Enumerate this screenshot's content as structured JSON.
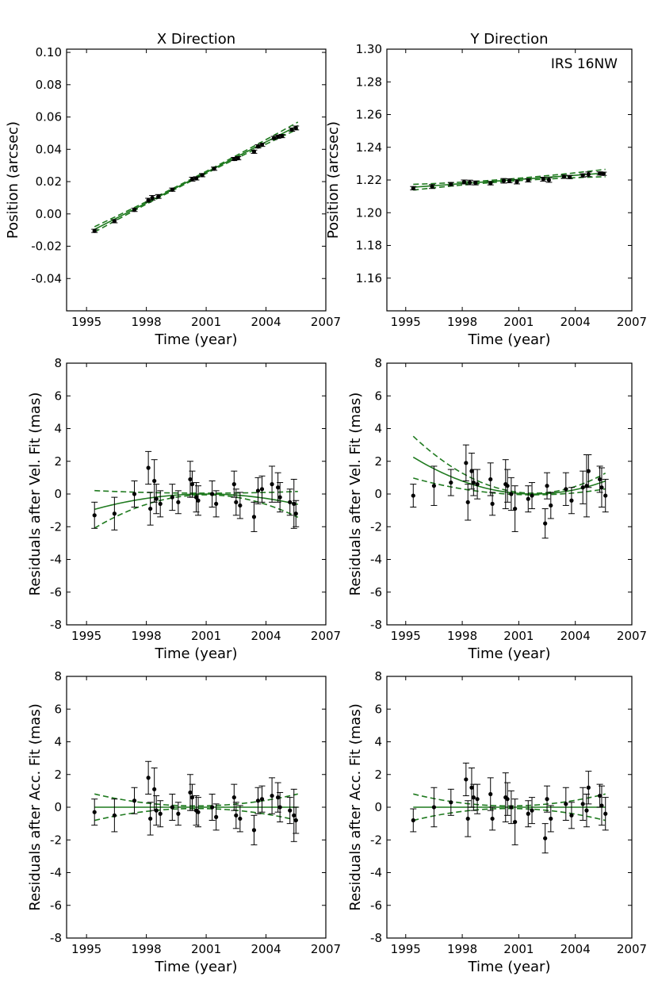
{
  "figure": {
    "annotation": "IRS 16NW"
  },
  "colors": {
    "fit": "#1f7a1f",
    "points": "#000000",
    "frame": "#000000"
  },
  "chart_data": [
    {
      "type": "scatter",
      "title": "X Direction",
      "xlabel": "Time (year)",
      "ylabel": "Position (arcsec)",
      "xlim": [
        1994.0,
        2007.0
      ],
      "ylim": [
        -0.06,
        0.102
      ],
      "xticks": [
        1995,
        1998,
        2001,
        2004,
        2007
      ],
      "yticks": [
        -0.04,
        -0.02,
        0.0,
        0.02,
        0.04,
        0.06,
        0.08,
        0.1
      ],
      "ytick_labels": [
        "-0.04",
        "-0.02",
        "0.00",
        "0.02",
        "0.04",
        "0.06",
        "0.08",
        "0.10"
      ],
      "points": [
        {
          "x": 1995.4,
          "y": -0.0105,
          "err": 0.001
        },
        {
          "x": 1996.4,
          "y": -0.0045,
          "err": 0.001
        },
        {
          "x": 1997.4,
          "y": 0.0025,
          "err": 0.001
        },
        {
          "x": 1998.1,
          "y": 0.0085,
          "err": 0.0012
        },
        {
          "x": 1998.3,
          "y": 0.01,
          "err": 0.0014
        },
        {
          "x": 1998.6,
          "y": 0.0108,
          "err": 0.0012
        },
        {
          "x": 1999.3,
          "y": 0.015,
          "err": 0.001
        },
        {
          "x": 2000.3,
          "y": 0.0215,
          "err": 0.0012
        },
        {
          "x": 2000.5,
          "y": 0.022,
          "err": 0.001
        },
        {
          "x": 2000.8,
          "y": 0.024,
          "err": 0.001
        },
        {
          "x": 2001.4,
          "y": 0.028,
          "err": 0.001
        },
        {
          "x": 2002.4,
          "y": 0.034,
          "err": 0.001
        },
        {
          "x": 2002.6,
          "y": 0.0345,
          "err": 0.001
        },
        {
          "x": 2003.4,
          "y": 0.0385,
          "err": 0.001
        },
        {
          "x": 2003.6,
          "y": 0.0418,
          "err": 0.001
        },
        {
          "x": 2003.8,
          "y": 0.0428,
          "err": 0.001
        },
        {
          "x": 2004.4,
          "y": 0.047,
          "err": 0.001
        },
        {
          "x": 2004.6,
          "y": 0.0478,
          "err": 0.001
        },
        {
          "x": 2004.8,
          "y": 0.0482,
          "err": 0.001
        },
        {
          "x": 2005.3,
          "y": 0.0522,
          "err": 0.001
        },
        {
          "x": 2005.5,
          "y": 0.0532,
          "err": 0.0012
        }
      ],
      "fit": {
        "x0": 2000.0,
        "c0": 0.0194,
        "c1": 0.0063,
        "c2": 0.0,
        "band": {
          "b0": 0.0006,
          "b2": 5e-05
        }
      }
    },
    {
      "type": "scatter",
      "title": "Y Direction",
      "xlabel": "Time (year)",
      "ylabel": "Position (arcsec)",
      "xlim": [
        1994.0,
        2007.0
      ],
      "ylim": [
        1.14,
        1.3
      ],
      "xticks": [
        1995,
        1998,
        2001,
        2004,
        2007
      ],
      "yticks": [
        1.16,
        1.18,
        1.2,
        1.22,
        1.24,
        1.26,
        1.28,
        1.3
      ],
      "ytick_labels": [
        "1.16",
        "1.18",
        "1.20",
        "1.22",
        "1.24",
        "1.26",
        "1.28",
        "1.30"
      ],
      "points": [
        {
          "x": 1995.4,
          "y": 1.215,
          "err": 0.001
        },
        {
          "x": 1996.4,
          "y": 1.216,
          "err": 0.0012
        },
        {
          "x": 1997.4,
          "y": 1.2175,
          "err": 0.001
        },
        {
          "x": 1998.1,
          "y": 1.2188,
          "err": 0.0012
        },
        {
          "x": 1998.4,
          "y": 1.2185,
          "err": 0.0014
        },
        {
          "x": 1998.7,
          "y": 1.2182,
          "err": 0.0012
        },
        {
          "x": 1999.5,
          "y": 1.218,
          "err": 0.001
        },
        {
          "x": 2000.2,
          "y": 1.2195,
          "err": 0.0014
        },
        {
          "x": 2000.5,
          "y": 1.2195,
          "err": 0.0012
        },
        {
          "x": 2000.9,
          "y": 1.2188,
          "err": 0.0012
        },
        {
          "x": 2001.5,
          "y": 1.2198,
          "err": 0.001
        },
        {
          "x": 2002.3,
          "y": 1.2205,
          "err": 0.0012
        },
        {
          "x": 2002.6,
          "y": 1.22,
          "err": 0.0014
        },
        {
          "x": 2003.4,
          "y": 1.222,
          "err": 0.001
        },
        {
          "x": 2003.7,
          "y": 1.2218,
          "err": 0.001
        },
        {
          "x": 2004.4,
          "y": 1.2228,
          "err": 0.001
        },
        {
          "x": 2004.7,
          "y": 1.2235,
          "err": 0.0014
        },
        {
          "x": 2005.3,
          "y": 1.224,
          "err": 0.001
        },
        {
          "x": 2005.5,
          "y": 1.2238,
          "err": 0.001
        }
      ],
      "fit": {
        "x0": 2000.0,
        "c0": 1.2195,
        "c1": 0.00085,
        "c2": 0.0,
        "band": {
          "b0": 0.0007,
          "b2": 5e-05
        }
      }
    },
    {
      "type": "scatter",
      "title": "",
      "xlabel": "Time (year)",
      "ylabel": "Residuals after Vel. Fit (mas)",
      "xlim": [
        1994.0,
        2007.0
      ],
      "ylim": [
        -8,
        8
      ],
      "xticks": [
        1995,
        1998,
        2001,
        2004,
        2007
      ],
      "yticks": [
        -8,
        -6,
        -4,
        -2,
        0,
        2,
        4,
        6,
        8
      ],
      "ytick_labels": [
        "-8",
        "-6",
        "-4",
        "-2",
        "0",
        "2",
        "4",
        "6",
        "8"
      ],
      "points": [
        {
          "x": 1995.4,
          "y": -1.3,
          "err": 0.8
        },
        {
          "x": 1996.4,
          "y": -1.2,
          "err": 1.0
        },
        {
          "x": 1997.4,
          "y": 0.0,
          "err": 0.8
        },
        {
          "x": 1998.1,
          "y": 1.6,
          "err": 1.0
        },
        {
          "x": 1998.2,
          "y": -0.9,
          "err": 1.0
        },
        {
          "x": 1998.4,
          "y": 0.8,
          "err": 1.3
        },
        {
          "x": 1998.5,
          "y": -0.3,
          "err": 0.9
        },
        {
          "x": 1998.7,
          "y": -0.6,
          "err": 0.8
        },
        {
          "x": 1999.3,
          "y": -0.2,
          "err": 0.8
        },
        {
          "x": 1999.6,
          "y": -0.5,
          "err": 0.7
        },
        {
          "x": 2000.2,
          "y": 0.9,
          "err": 1.1
        },
        {
          "x": 2000.3,
          "y": 0.6,
          "err": 0.8
        },
        {
          "x": 2000.5,
          "y": -0.2,
          "err": 0.9
        },
        {
          "x": 2000.6,
          "y": -0.4,
          "err": 0.9
        },
        {
          "x": 2001.3,
          "y": 0.0,
          "err": 0.8
        },
        {
          "x": 2001.5,
          "y": -0.6,
          "err": 0.8
        },
        {
          "x": 2002.4,
          "y": 0.6,
          "err": 0.8
        },
        {
          "x": 2002.5,
          "y": -0.5,
          "err": 0.8
        },
        {
          "x": 2002.7,
          "y": -0.7,
          "err": 0.8
        },
        {
          "x": 2003.4,
          "y": -1.4,
          "err": 0.9
        },
        {
          "x": 2003.6,
          "y": 0.2,
          "err": 0.8
        },
        {
          "x": 2003.8,
          "y": 0.3,
          "err": 0.8
        },
        {
          "x": 2004.3,
          "y": 0.6,
          "err": 1.1
        },
        {
          "x": 2004.6,
          "y": 0.4,
          "err": 0.9
        },
        {
          "x": 2004.7,
          "y": -0.2,
          "err": 0.9
        },
        {
          "x": 2005.2,
          "y": -0.5,
          "err": 0.8
        },
        {
          "x": 2005.4,
          "y": -0.6,
          "err": 1.5
        },
        {
          "x": 2005.5,
          "y": -1.2,
          "err": 0.8
        }
      ],
      "fit": {
        "x0": 2001.0,
        "c0": 0.0,
        "c1": 0.0,
        "c2": -0.03,
        "band": {
          "b0": 0.05,
          "b2": 0.035
        }
      }
    },
    {
      "type": "scatter",
      "title": "",
      "xlabel": "Time (year)",
      "ylabel": "Residuals after Vel. Fit (mas)",
      "xlim": [
        1994.0,
        2007.0
      ],
      "ylim": [
        -8,
        8
      ],
      "xticks": [
        1995,
        1998,
        2001,
        2004,
        2007
      ],
      "yticks": [
        -8,
        -6,
        -4,
        -2,
        0,
        2,
        4,
        6,
        8
      ],
      "ytick_labels": [
        "-8",
        "-6",
        "-4",
        "-2",
        "0",
        "2",
        "4",
        "6",
        "8"
      ],
      "points": [
        {
          "x": 1995.4,
          "y": -0.1,
          "err": 0.7
        },
        {
          "x": 1996.5,
          "y": 0.5,
          "err": 1.2
        },
        {
          "x": 1997.4,
          "y": 0.7,
          "err": 0.8
        },
        {
          "x": 1998.2,
          "y": 1.9,
          "err": 1.1
        },
        {
          "x": 1998.3,
          "y": -0.5,
          "err": 1.1
        },
        {
          "x": 1998.5,
          "y": 1.4,
          "err": 1.1
        },
        {
          "x": 1998.6,
          "y": 0.7,
          "err": 0.8
        },
        {
          "x": 1998.8,
          "y": 0.6,
          "err": 0.9
        },
        {
          "x": 1999.5,
          "y": 0.9,
          "err": 1.0
        },
        {
          "x": 1999.6,
          "y": -0.6,
          "err": 0.7
        },
        {
          "x": 2000.3,
          "y": 0.6,
          "err": 1.5
        },
        {
          "x": 2000.4,
          "y": 0.5,
          "err": 1.0
        },
        {
          "x": 2000.6,
          "y": 0.0,
          "err": 1.0
        },
        {
          "x": 2000.8,
          "y": -0.9,
          "err": 1.4
        },
        {
          "x": 2001.5,
          "y": -0.3,
          "err": 0.8
        },
        {
          "x": 2001.7,
          "y": -0.1,
          "err": 0.8
        },
        {
          "x": 2002.4,
          "y": -1.8,
          "err": 0.9
        },
        {
          "x": 2002.5,
          "y": 0.5,
          "err": 0.8
        },
        {
          "x": 2002.7,
          "y": -0.7,
          "err": 0.8
        },
        {
          "x": 2003.5,
          "y": 0.3,
          "err": 1.0
        },
        {
          "x": 2003.8,
          "y": -0.4,
          "err": 0.8
        },
        {
          "x": 2004.4,
          "y": 0.4,
          "err": 1.0
        },
        {
          "x": 2004.6,
          "y": 0.5,
          "err": 1.9
        },
        {
          "x": 2004.7,
          "y": 1.4,
          "err": 1.0
        },
        {
          "x": 2005.3,
          "y": 0.9,
          "err": 0.8
        },
        {
          "x": 2005.4,
          "y": 0.4,
          "err": 1.2
        },
        {
          "x": 2005.6,
          "y": -0.1,
          "err": 1.0
        }
      ],
      "fit": {
        "x0": 2001.8,
        "c0": 0.0,
        "c1": 0.0,
        "c2": 0.055,
        "band": {
          "b0": 0.05,
          "b2": 0.03
        }
      }
    },
    {
      "type": "scatter",
      "title": "",
      "xlabel": "Time (year)",
      "ylabel": "Residuals after Acc. Fit (mas)",
      "xlim": [
        1994.0,
        2007.0
      ],
      "ylim": [
        -8,
        8
      ],
      "xticks": [
        1995,
        1998,
        2001,
        2004,
        2007
      ],
      "yticks": [
        -8,
        -6,
        -4,
        -2,
        0,
        2,
        4,
        6,
        8
      ],
      "ytick_labels": [
        "-8",
        "-6",
        "-4",
        "-2",
        "0",
        "2",
        "4",
        "6",
        "8"
      ],
      "points": [
        {
          "x": 1995.4,
          "y": -0.3,
          "err": 0.8
        },
        {
          "x": 1996.4,
          "y": -0.5,
          "err": 1.0
        },
        {
          "x": 1997.4,
          "y": 0.4,
          "err": 0.8
        },
        {
          "x": 1998.1,
          "y": 1.8,
          "err": 1.0
        },
        {
          "x": 1998.2,
          "y": -0.7,
          "err": 1.0
        },
        {
          "x": 1998.4,
          "y": 1.1,
          "err": 1.3
        },
        {
          "x": 1998.5,
          "y": -0.2,
          "err": 0.9
        },
        {
          "x": 1998.7,
          "y": -0.4,
          "err": 0.8
        },
        {
          "x": 1999.3,
          "y": 0.0,
          "err": 0.8
        },
        {
          "x": 1999.6,
          "y": -0.4,
          "err": 0.7
        },
        {
          "x": 2000.2,
          "y": 0.9,
          "err": 1.1
        },
        {
          "x": 2000.3,
          "y": 0.6,
          "err": 0.8
        },
        {
          "x": 2000.5,
          "y": -0.2,
          "err": 0.9
        },
        {
          "x": 2000.6,
          "y": -0.3,
          "err": 0.9
        },
        {
          "x": 2001.3,
          "y": 0.0,
          "err": 0.8
        },
        {
          "x": 2001.5,
          "y": -0.6,
          "err": 0.8
        },
        {
          "x": 2002.4,
          "y": 0.6,
          "err": 0.8
        },
        {
          "x": 2002.5,
          "y": -0.5,
          "err": 0.8
        },
        {
          "x": 2002.7,
          "y": -0.7,
          "err": 0.8
        },
        {
          "x": 2003.4,
          "y": -1.4,
          "err": 0.9
        },
        {
          "x": 2003.6,
          "y": 0.4,
          "err": 0.8
        },
        {
          "x": 2003.8,
          "y": 0.5,
          "err": 0.8
        },
        {
          "x": 2004.3,
          "y": 0.7,
          "err": 1.1
        },
        {
          "x": 2004.6,
          "y": 0.6,
          "err": 0.9
        },
        {
          "x": 2004.7,
          "y": 0.0,
          "err": 0.9
        },
        {
          "x": 2005.2,
          "y": -0.2,
          "err": 0.8
        },
        {
          "x": 2005.4,
          "y": -0.5,
          "err": 1.6
        },
        {
          "x": 2005.5,
          "y": -0.8,
          "err": 0.8
        }
      ],
      "fit": {
        "x0": 2000.5,
        "c0": 0.0,
        "c1": 0.0,
        "c2": 0.0,
        "band": {
          "b0": 0.08,
          "b2": 0.028
        }
      }
    },
    {
      "type": "scatter",
      "title": "",
      "xlabel": "Time (year)",
      "ylabel": "Residuals after Acc. Fit (mas)",
      "xlim": [
        1994.0,
        2007.0
      ],
      "ylim": [
        -8,
        8
      ],
      "xticks": [
        1995,
        1998,
        2001,
        2004,
        2007
      ],
      "yticks": [
        -8,
        -6,
        -4,
        -2,
        0,
        2,
        4,
        6,
        8
      ],
      "ytick_labels": [
        "-8",
        "-6",
        "-4",
        "-2",
        "0",
        "2",
        "4",
        "6",
        "8"
      ],
      "points": [
        {
          "x": 1995.4,
          "y": -0.8,
          "err": 0.7
        },
        {
          "x": 1996.5,
          "y": 0.0,
          "err": 1.2
        },
        {
          "x": 1997.4,
          "y": 0.3,
          "err": 0.8
        },
        {
          "x": 1998.2,
          "y": 1.7,
          "err": 1.0
        },
        {
          "x": 1998.3,
          "y": -0.7,
          "err": 1.1
        },
        {
          "x": 1998.5,
          "y": 1.2,
          "err": 1.2
        },
        {
          "x": 1998.6,
          "y": 0.6,
          "err": 0.8
        },
        {
          "x": 1998.8,
          "y": 0.5,
          "err": 0.9
        },
        {
          "x": 1999.5,
          "y": 0.8,
          "err": 1.0
        },
        {
          "x": 1999.6,
          "y": -0.7,
          "err": 0.7
        },
        {
          "x": 2000.3,
          "y": 0.6,
          "err": 1.5
        },
        {
          "x": 2000.4,
          "y": 0.5,
          "err": 1.0
        },
        {
          "x": 2000.6,
          "y": 0.0,
          "err": 1.0
        },
        {
          "x": 2000.8,
          "y": -0.9,
          "err": 1.4
        },
        {
          "x": 2001.5,
          "y": -0.4,
          "err": 0.8
        },
        {
          "x": 2001.7,
          "y": -0.2,
          "err": 0.8
        },
        {
          "x": 2002.4,
          "y": -1.9,
          "err": 0.9
        },
        {
          "x": 2002.5,
          "y": 0.5,
          "err": 0.8
        },
        {
          "x": 2002.7,
          "y": -0.7,
          "err": 0.8
        },
        {
          "x": 2003.5,
          "y": 0.2,
          "err": 1.0
        },
        {
          "x": 2003.8,
          "y": -0.5,
          "err": 0.8
        },
        {
          "x": 2004.4,
          "y": 0.2,
          "err": 1.0
        },
        {
          "x": 2004.6,
          "y": -0.2,
          "err": 1.0
        },
        {
          "x": 2004.7,
          "y": 1.2,
          "err": 1.0
        },
        {
          "x": 2005.3,
          "y": 0.7,
          "err": 0.7
        },
        {
          "x": 2005.4,
          "y": 0.1,
          "err": 1.2
        },
        {
          "x": 2005.6,
          "y": -0.4,
          "err": 1.0
        }
      ],
      "fit": {
        "x0": 2000.5,
        "c0": 0.0,
        "c1": 0.0,
        "c2": 0.0,
        "band": {
          "b0": 0.08,
          "b2": 0.028
        }
      }
    }
  ]
}
